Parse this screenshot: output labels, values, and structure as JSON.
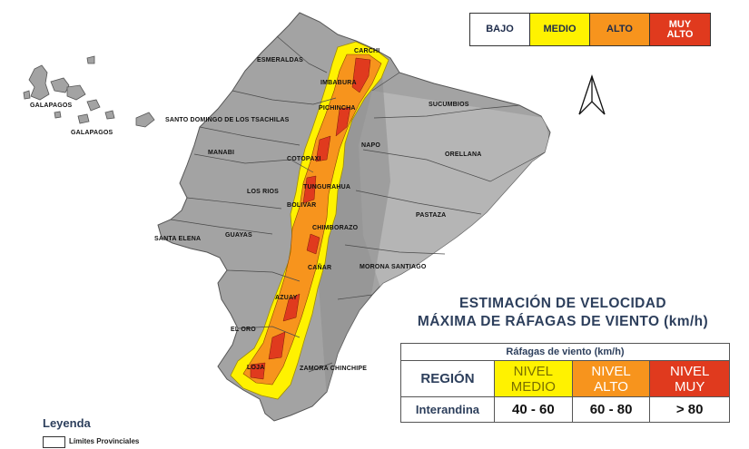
{
  "risk_scale": [
    {
      "label": "BAJO",
      "color": "#ffffff",
      "text_color": "#1d2b4a"
    },
    {
      "label": "MEDIO",
      "color": "#fff200",
      "text_color": "#1d2b4a"
    },
    {
      "label": "ALTO",
      "color": "#f7941d",
      "text_color": "#1d2b4a"
    },
    {
      "label": "MUY ALTO",
      "color": "#e03a1e",
      "text_color": "#ffffff"
    }
  ],
  "provinces": [
    {
      "name": "CARCHI",
      "id": "carchi"
    },
    {
      "name": "ESMERALDAS",
      "id": "esmeraldas"
    },
    {
      "name": "IMBABURA",
      "id": "imbabura"
    },
    {
      "name": "PICHINCHA",
      "id": "pichincha"
    },
    {
      "name": "SUCUMBIOS",
      "id": "sucumbios"
    },
    {
      "name": "SANTO DOMINGO DE LOS TSACHILAS",
      "id": "santo-domingo"
    },
    {
      "name": "NAPO",
      "id": "napo"
    },
    {
      "name": "MANABI",
      "id": "manabi"
    },
    {
      "name": "COTOPAXI",
      "id": "cotopaxi"
    },
    {
      "name": "ORELLANA",
      "id": "orellana"
    },
    {
      "name": "TUNGURAHUA",
      "id": "tungurahua"
    },
    {
      "name": "LOS RIOS",
      "id": "los-rios"
    },
    {
      "name": "BOLIVAR",
      "id": "bolivar"
    },
    {
      "name": "PASTAZA",
      "id": "pastaza"
    },
    {
      "name": "GUAYAS",
      "id": "guayas"
    },
    {
      "name": "CHIMBORAZO",
      "id": "chimborazo"
    },
    {
      "name": "SANTA ELENA",
      "id": "santa-elena"
    },
    {
      "name": "MORONA SANTIAGO",
      "id": "morona-santiago"
    },
    {
      "name": "CAÑAR",
      "id": "canar"
    },
    {
      "name": "AZUAY",
      "id": "azuay"
    },
    {
      "name": "EL ORO",
      "id": "el-oro"
    },
    {
      "name": "ZAMORA CHINCHIPE",
      "id": "zamora-chinchipe"
    },
    {
      "name": "LOJA",
      "id": "loja"
    },
    {
      "name": "GALAPAGOS",
      "id": "galapagos-1"
    },
    {
      "name": "GALAPAGOS",
      "id": "galapagos-2"
    }
  ],
  "title": {
    "line1": "ESTIMACIÓN DE VELOCIDAD",
    "line2": "MÁXIMA DE RÁFAGAS DE VIENTO (km/h)"
  },
  "wind_table": {
    "caption": "Ráfagas de viento (km/h)",
    "region_header": "REGIÓN",
    "levels": [
      {
        "line1": "NIVEL",
        "line2": "MEDIO",
        "color": "#fff200",
        "text_color": "#7a6f00"
      },
      {
        "line1": "NIVEL",
        "line2": "ALTO",
        "color": "#f7941d",
        "text_color": "#ffffff"
      },
      {
        "line1": "NIVEL",
        "line2": "MUY",
        "color": "#e03a1e",
        "text_color": "#ffffff"
      }
    ],
    "rows": [
      {
        "region": "Interandina",
        "values": [
          "40 - 60",
          "60 - 80",
          "> 80"
        ]
      }
    ]
  },
  "legend": {
    "title": "Leyenda",
    "item": "Límites Provinciales"
  }
}
